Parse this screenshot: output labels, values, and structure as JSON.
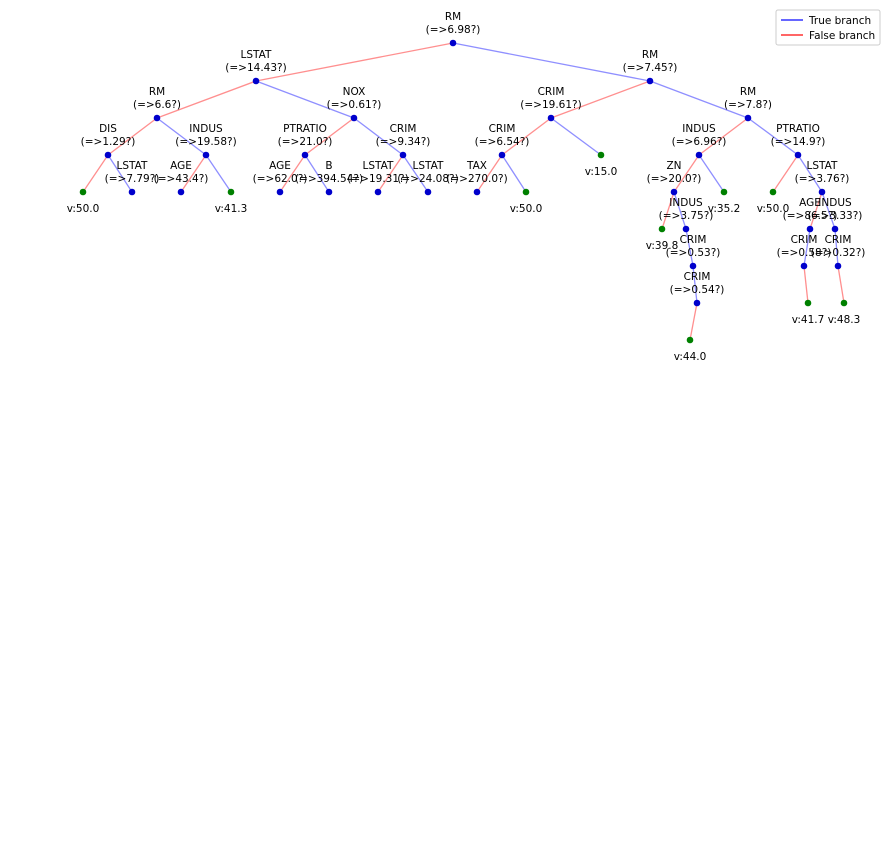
{
  "legend": [
    {
      "label": "True branch",
      "color": "#3333ff"
    },
    {
      "label": "False branch",
      "color": "#ff3333"
    }
  ],
  "nodes": [
    {
      "feature": "RM",
      "condition": "(=>6.98?)"
    },
    {
      "feature": "LSTAT",
      "condition": "(=>14.43?)",
      "parent": 0,
      "branch": false
    },
    {
      "feature": "RM",
      "condition": "(=>7.45?)",
      "parent": 0,
      "branch": true
    },
    {
      "feature": "RM",
      "condition": "(=>6.6?)",
      "parent": 1,
      "branch": false
    },
    {
      "feature": "NOX",
      "condition": "(=>0.61?)",
      "parent": 1,
      "branch": true
    },
    {
      "feature": "CRIM",
      "condition": "(=>19.61?)",
      "parent": 2,
      "branch": false
    },
    {
      "feature": "RM",
      "condition": "(=>7.8?)",
      "parent": 2,
      "branch": true
    },
    {
      "feature": "DIS",
      "condition": "(=>1.29?)",
      "parent": 3,
      "branch": false
    },
    {
      "feature": "INDUS",
      "condition": "(=>19.58?)",
      "parent": 3,
      "branch": true
    },
    {
      "feature": "PTRATIO",
      "condition": "(=>21.0?)",
      "parent": 4,
      "branch": false
    },
    {
      "feature": "CRIM",
      "condition": "(=>9.34?)",
      "parent": 4,
      "branch": true
    },
    {
      "feature": "CRIM",
      "condition": "(=>6.54?)",
      "parent": 5,
      "branch": false
    },
    {
      "value": "v:15.0",
      "parent": 5,
      "branch": true
    },
    {
      "feature": "INDUS",
      "condition": "(=>6.96?)",
      "parent": 6,
      "branch": false
    },
    {
      "feature": "PTRATIO",
      "condition": "(=>14.9?)",
      "parent": 6,
      "branch": true
    },
    {
      "value": "v:50.0",
      "parent": 7,
      "branch": false
    },
    {
      "feature": "LSTAT",
      "condition": "(=>7.79?)",
      "parent": 7,
      "branch": true
    },
    {
      "feature": "AGE",
      "condition": "(=>43.4?)",
      "parent": 8,
      "branch": false
    },
    {
      "value": "v:41.3",
      "parent": 8,
      "branch": true
    },
    {
      "feature": "AGE",
      "condition": "(=>62.0?)",
      "parent": 9,
      "branch": false
    },
    {
      "feature": "B",
      "condition": "(=>394.54?)",
      "parent": 9,
      "branch": true
    },
    {
      "feature": "LSTAT",
      "condition": "(=>19.31?)",
      "parent": 10,
      "branch": false
    },
    {
      "feature": "LSTAT",
      "condition": "(=>24.08?)",
      "parent": 10,
      "branch": true
    },
    {
      "feature": "TAX",
      "condition": "(=>270.0?)",
      "parent": 11,
      "branch": false
    },
    {
      "value": "v:50.0",
      "parent": 11,
      "branch": true
    },
    {
      "feature": "ZN",
      "condition": "(=>20.0?)",
      "parent": 13,
      "branch": false
    },
    {
      "value": "v:35.2",
      "parent": 13,
      "branch": true
    },
    {
      "value": "v:50.0",
      "parent": 14,
      "branch": false
    },
    {
      "feature": "LSTAT",
      "condition": "(=>3.76?)",
      "parent": 14,
      "branch": true
    },
    {
      "value": "v:39.8",
      "parent": 25,
      "branch": false
    },
    {
      "feature": "INDUS",
      "condition": "(=>3.75?)",
      "parent": 25,
      "branch": true
    },
    {
      "feature": "AGE",
      "condition": "(=>86.5?)",
      "parent": 28,
      "branch": false
    },
    {
      "feature": "INDUS",
      "condition": "(=>3.33?)",
      "parent": 28,
      "branch": true
    },
    {
      "feature": "CRIM",
      "condition": "(=>0.53?)",
      "parent": 30,
      "branch": true
    },
    {
      "feature": "CRIM",
      "condition": "(=>0.54?)",
      "parent": 33,
      "branch": true
    },
    {
      "value": "v:44.0",
      "parent": 34,
      "branch": false
    },
    {
      "feature": "CRIM",
      "condition": "(=>0.58?)",
      "parent": 31,
      "branch": true
    },
    {
      "feature": "CRIM",
      "condition": "(=>0.32?)",
      "parent": 32,
      "branch": true
    },
    {
      "value": "v:41.7",
      "parent": 36,
      "branch": false
    },
    {
      "value": "v:48.3",
      "parent": 37,
      "branch": false
    }
  ]
}
